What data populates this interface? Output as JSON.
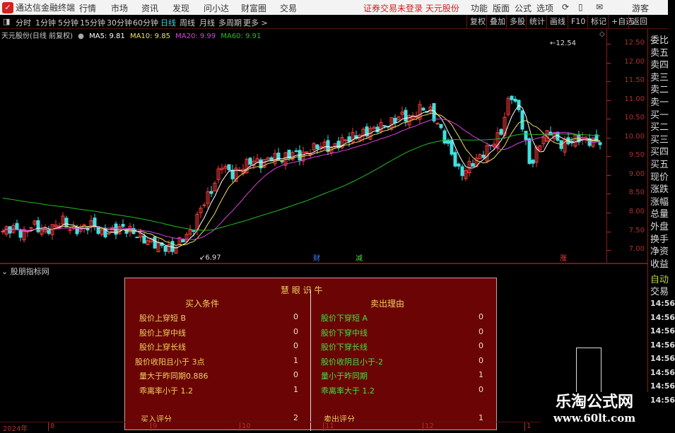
{
  "app": {
    "title": "通达信金融终端",
    "menu": [
      "行情",
      "市场",
      "资讯",
      "发现",
      "问小达",
      "财富圈",
      "交易"
    ],
    "status": "证券交易未登录  天元股份",
    "right_menu": [
      "功能",
      "版面",
      "公式",
      "选项"
    ],
    "user": "游客"
  },
  "periods": [
    "分时",
    "1分钟",
    "5分钟",
    "15分钟",
    "30分钟",
    "60分钟",
    "日线",
    "周线",
    "月线",
    "多周期",
    "更多 >"
  ],
  "active_period": "日线",
  "toolbar_buttons": [
    "复权",
    "叠加",
    "多股",
    "统计",
    "画线",
    "F10",
    "标记",
    "+自选",
    "返回"
  ],
  "info": {
    "stock": "天元股份(日线 前复权)",
    "ma5": "MA5: 9.81",
    "ma10": "MA10: 9.85",
    "ma20": "MA20: 9.99",
    "ma60": "MA60: 9.91"
  },
  "colors": {
    "up": "#ff3c3c",
    "down": "#40e0e0",
    "ma5": "#ffffff",
    "ma10": "#f0e060",
    "ma20": "#e040e0",
    "ma60": "#20c020"
  },
  "price_axis": [
    "12.50",
    "12.00",
    "11.50",
    "11.00",
    "10.50",
    "10.00",
    "9.50",
    "9.00",
    "8.50",
    "8.00",
    "7.50",
    "7.00"
  ],
  "annotations": {
    "high": "12.54",
    "low": "6.97"
  },
  "markers": [
    {
      "label": "财",
      "color": "#4080ff"
    },
    {
      "label": "减",
      "color": "#40e040"
    },
    {
      "label": "涨",
      "color": "#ff4040"
    }
  ],
  "price_path": [
    7.5,
    7.6,
    7.4,
    7.7,
    7.5,
    7.6,
    7.8,
    7.5,
    7.6,
    7.7,
    7.4,
    7.5,
    7.6,
    7.5,
    7.3,
    7.2,
    7.1,
    7.0,
    7.3,
    7.5,
    8.2,
    8.6,
    9.3,
    9.0,
    9.2,
    9.4,
    9.3,
    9.5,
    9.4,
    9.6,
    9.5,
    9.7,
    9.8,
    9.7,
    9.9,
    10.0,
    10.1,
    10.2,
    10.3,
    10.4,
    10.6,
    10.5,
    10.8,
    10.7,
    10.2,
    9.6,
    9.0,
    9.3,
    9.5,
    9.8,
    10.1,
    11.2,
    10.6,
    9.2,
    9.9,
    10.2,
    9.8,
    9.9,
    10.0,
    9.9,
    9.9
  ],
  "sub_panel": {
    "title": "股朋指标网"
  },
  "panel": {
    "title": "慧 眼 识 牛",
    "buy_header": "买入条件",
    "sell_header": "卖出理由",
    "buy": [
      {
        "label": "股价上穿短 B",
        "value": "0"
      },
      {
        "label": "股价上穿中线",
        "value": "0"
      },
      {
        "label": "股价上穿长线",
        "value": "0"
      },
      {
        "label": "股价收阳且小于 3点",
        "value": "1"
      },
      {
        "label": "量大于昨同期0.886",
        "value": "0"
      },
      {
        "label": "乖离率小于 1.2",
        "value": "1"
      }
    ],
    "sell": [
      {
        "label": "股价下穿短 A",
        "value": "0"
      },
      {
        "label": "股价下穿中线",
        "value": "0"
      },
      {
        "label": "股价下穿长线",
        "value": "0"
      },
      {
        "label": "股价收阴且小于-2",
        "value": "0"
      },
      {
        "label": "量小于昨同期",
        "value": "1"
      },
      {
        "label": "乖离率大于 1.2",
        "value": "0"
      }
    ],
    "buy_score_label": "买入评分",
    "buy_score": "2",
    "sell_score_label": "卖出评分",
    "sell_score": "1"
  },
  "date_axis": [
    "2024年",
    "8",
    "9",
    "10",
    "11",
    "12",
    "1"
  ],
  "right_labels": [
    "委比",
    "卖五",
    "卖四",
    "卖三",
    "卖二",
    "卖一",
    "买一",
    "买二",
    "买三",
    "买四",
    "买五",
    "现价",
    "涨跌",
    "涨幅",
    "总量",
    "外盘",
    "换手",
    "净资",
    "收益"
  ],
  "right_auto": "自动",
  "right_trade": "交易",
  "times": [
    "14:56",
    "14:56",
    "14:56",
    "14:56",
    "14:56",
    "14:56",
    "14:56",
    "14:56"
  ],
  "watermark": {
    "name": "乐淘公式网",
    "url": "www.60lt.com"
  }
}
